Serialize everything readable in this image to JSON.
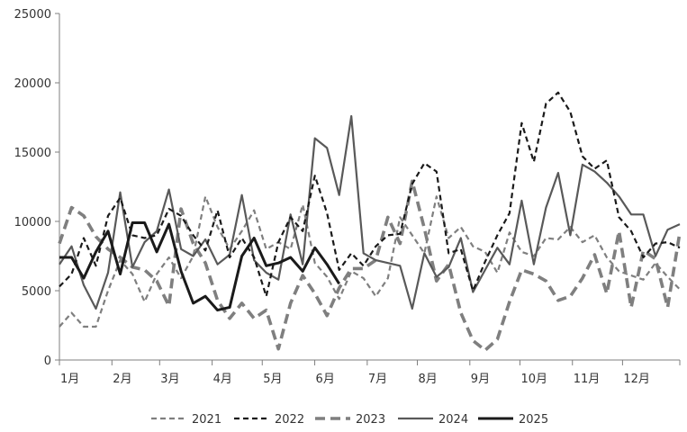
{
  "chart_data": {
    "type": "line",
    "title": "",
    "xlabel": "",
    "ylabel": "",
    "ylim": [
      0,
      25000
    ],
    "yticks": [
      0,
      5000,
      10000,
      15000,
      20000,
      25000
    ],
    "ytick_labels": [
      "0",
      "5000",
      "10000",
      "15000",
      "20000",
      "25000"
    ],
    "x_range": [
      1,
      52
    ],
    "x_unit": "week of year",
    "month_labels": [
      "1月",
      "2月",
      "3月",
      "4月",
      "5月",
      "6月",
      "7月",
      "8月",
      "9月",
      "10月",
      "11月",
      "12月"
    ],
    "month_tick_weeks": [
      1,
      5.4,
      9.4,
      13.8,
      18.0,
      22.4,
      26.8,
      31.0,
      35.4,
      39.6,
      44.0,
      48.2,
      53
    ],
    "legend_position": "bottom",
    "grid": false,
    "series": [
      {
        "name": "2021",
        "color": "#7f7f7f",
        "style": "dashed-thin",
        "values": [
          2400,
          3400,
          2400,
          2400,
          5000,
          7200,
          6200,
          4200,
          6200,
          7400,
          5900,
          7500,
          11800,
          9600,
          8000,
          9300,
          10800,
          8000,
          8500,
          8000,
          11200,
          7000,
          6000,
          4400,
          6400,
          5900,
          4600,
          5900,
          10300,
          9000,
          7700,
          11800,
          8800,
          9600,
          8200,
          7800,
          6300,
          9200,
          7800,
          7500,
          8800,
          8700,
          9600,
          8500,
          9000,
          7400,
          6400,
          6100,
          5800,
          7000,
          6000,
          5100
        ]
      },
      {
        "name": "2022",
        "color": "#1a1a1a",
        "style": "dashed",
        "values": [
          5300,
          6200,
          8800,
          6800,
          10400,
          11700,
          9000,
          8800,
          9000,
          10900,
          10400,
          9000,
          7900,
          10800,
          7400,
          8800,
          7400,
          4600,
          8500,
          10300,
          9300,
          13300,
          10600,
          6500,
          7700,
          6800,
          8200,
          9000,
          9100,
          12700,
          14200,
          13600,
          7700,
          8000,
          5000,
          7100,
          9000,
          10600,
          17100,
          14300,
          18500,
          19300,
          17900,
          14700,
          13800,
          14400,
          10300,
          9300,
          7400,
          8400,
          8500,
          8100
        ]
      },
      {
        "name": "2023",
        "color": "#7f7f7f",
        "style": "dashed-thick",
        "values": [
          8400,
          11000,
          10400,
          8900,
          8000,
          7400,
          6700,
          6500,
          5700,
          3900,
          10900,
          8400,
          7000,
          4300,
          3000,
          4100,
          3000,
          3600,
          800,
          4100,
          6100,
          4800,
          3200,
          5200,
          6600,
          6600,
          7200,
          10300,
          8400,
          12900,
          9500,
          5700,
          6900,
          3400,
          1400,
          700,
          1500,
          4200,
          6500,
          6200,
          5700,
          4300,
          4600,
          5900,
          7600,
          4800,
          9300,
          3800,
          7900,
          7300,
          3800,
          9200
        ]
      },
      {
        "name": "2024",
        "color": "#595959",
        "style": "solid",
        "values": [
          6900,
          8200,
          5400,
          3700,
          6300,
          12100,
          6700,
          8500,
          9300,
          12300,
          8000,
          7500,
          8700,
          6900,
          7600,
          11900,
          7200,
          6300,
          5800,
          10500,
          6900,
          16000,
          15300,
          11900,
          17600,
          7700,
          7200,
          7000,
          6800,
          3700,
          7700,
          6000,
          6700,
          8800,
          4900,
          6500,
          8100,
          6900,
          11500,
          6900,
          11000,
          13500,
          9000,
          14100,
          13600,
          12800,
          11800,
          10500,
          10500,
          7500,
          9400,
          9800
        ]
      },
      {
        "name": "2025",
        "color": "#1a1a1a",
        "style": "solid-thick",
        "values": [
          7400,
          7400,
          5900,
          7800,
          9300,
          6200,
          9900,
          9900,
          7800,
          9800,
          6400,
          4100,
          4600,
          3600,
          3800,
          7500,
          8800,
          6800,
          7000,
          7400,
          6400,
          8100,
          6900,
          5500
        ]
      }
    ]
  }
}
